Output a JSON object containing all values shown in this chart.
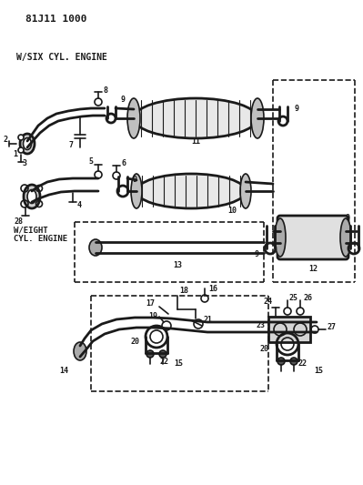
{
  "title": "81J11 1000",
  "label_six": "W/SIX CYL. ENGINE",
  "label_eight": "W/EIGHT\nCYL. ENGINE",
  "bg_color": "#ffffff",
  "lc": "#1a1a1a",
  "figsize": [
    3.99,
    5.33
  ],
  "dpi": 100
}
